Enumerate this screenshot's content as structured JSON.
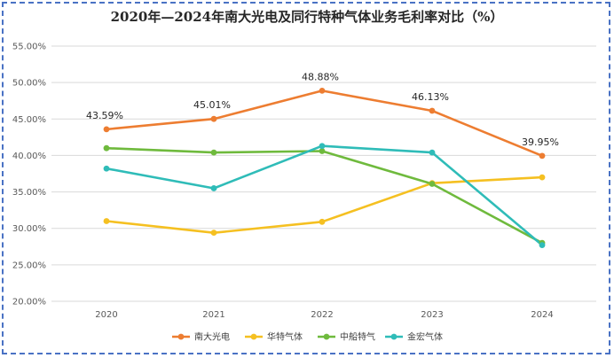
{
  "title": "2020年—2024年南大光电及同行特种气体业务毛利率对比（%）",
  "chart_data": {
    "type": "line",
    "title": "2020年—2024年南大光电及同行特种气体业务毛利率对比（%）",
    "categories": [
      "2020",
      "2021",
      "2022",
      "2023",
      "2024"
    ],
    "ylim": [
      20,
      55
    ],
    "yticks": [
      "20.00%",
      "25.00%",
      "30.00%",
      "35.00%",
      "40.00%",
      "45.00%",
      "50.00%",
      "55.00%"
    ],
    "grid": true,
    "legend_position": "bottom",
    "series": [
      {
        "name": "南大光电",
        "color": "#ed7d31",
        "values": [
          43.59,
          45.01,
          48.88,
          46.13,
          39.95
        ],
        "labels": [
          "43.59%",
          "45.01%",
          "48.88%",
          "46.13%",
          "39.95%"
        ]
      },
      {
        "name": "华特气体",
        "color": "#f5c021",
        "values": [
          31.0,
          29.4,
          30.9,
          36.2,
          37.0
        ]
      },
      {
        "name": "中船特气",
        "color": "#6fba3d",
        "values": [
          41.0,
          40.4,
          40.6,
          36.1,
          28.0
        ]
      },
      {
        "name": "金宏气体",
        "color": "#2fbcb8",
        "values": [
          38.2,
          35.5,
          41.3,
          40.4,
          27.7
        ]
      }
    ]
  }
}
